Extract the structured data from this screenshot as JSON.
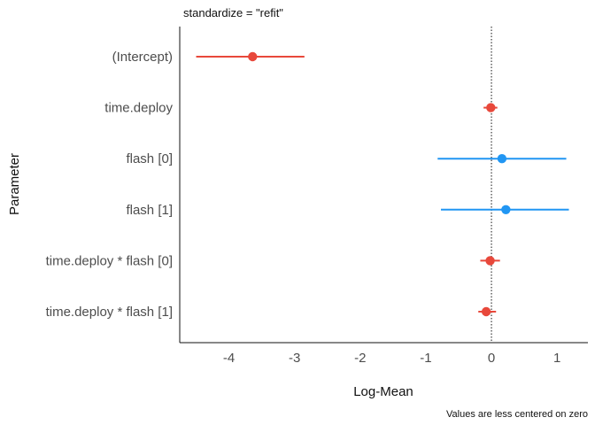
{
  "chart_data": {
    "type": "forest",
    "title": "standardize = \"refit\"",
    "xlabel": "Log-Mean",
    "ylabel": "Parameter",
    "caption": "Values are less centered on zero",
    "xlim": [
      -4.75,
      1.47
    ],
    "xticks": [
      -4,
      -3,
      -2,
      -1,
      0,
      1
    ],
    "xtick_labels": [
      "-4",
      "-3",
      "-2",
      "-1",
      "0",
      "1"
    ],
    "reference_line": 0,
    "grid": false,
    "colors": {
      "negative": "#e8483b",
      "positive": "#2196f3"
    },
    "parameters": [
      {
        "label": "(Intercept)",
        "estimate": -3.64,
        "low": -4.5,
        "high": -2.85,
        "sign": "negative"
      },
      {
        "label": "time.deploy",
        "estimate": -0.01,
        "low": -0.12,
        "high": 0.09,
        "sign": "negative"
      },
      {
        "label": "flash [0]",
        "estimate": 0.16,
        "low": -0.82,
        "high": 1.14,
        "sign": "positive"
      },
      {
        "label": "flash [1]",
        "estimate": 0.22,
        "low": -0.77,
        "high": 1.18,
        "sign": "positive"
      },
      {
        "label": "time.deploy * flash [0]",
        "estimate": -0.02,
        "low": -0.17,
        "high": 0.13,
        "sign": "negative"
      },
      {
        "label": "time.deploy * flash [1]",
        "estimate": -0.08,
        "low": -0.2,
        "high": 0.07,
        "sign": "negative"
      }
    ]
  }
}
